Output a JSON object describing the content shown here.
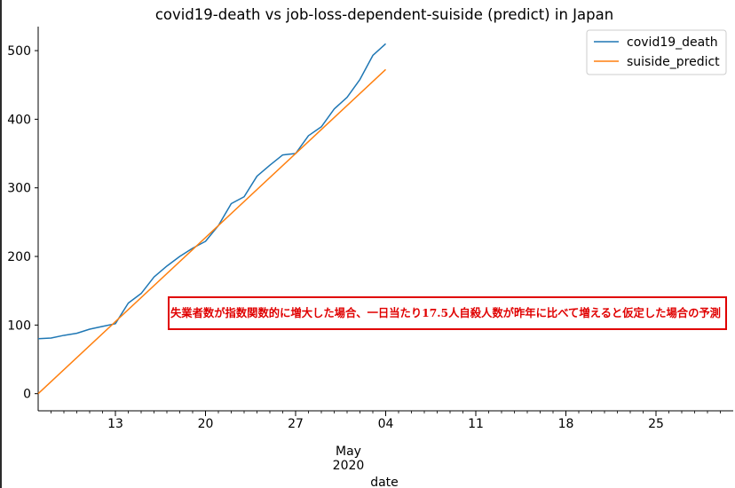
{
  "chart_data": {
    "type": "line",
    "title": "covid19-death vs job-loss-dependent-suiside (predict) in Japan",
    "xlabel": "date",
    "ylabel": "",
    "x_ticks": [
      "13",
      "20",
      "27",
      "04",
      "11",
      "18",
      "25"
    ],
    "x_tick_dates": [
      "2020-04-13",
      "2020-04-20",
      "2020-04-27",
      "2020-05-04",
      "2020-05-11",
      "2020-05-18",
      "2020-05-25"
    ],
    "x_secondary_label": [
      "May",
      "2020"
    ],
    "x_secondary_at": "2020-05-04",
    "xlim": [
      "2020-04-07",
      "2020-05-31"
    ],
    "y_ticks": [
      0,
      100,
      200,
      300,
      400,
      500
    ],
    "ylim": [
      -25,
      535
    ],
    "grid": false,
    "legend_position": "upper right",
    "series": [
      {
        "name": "covid19_death",
        "color": "#1f77b4",
        "x": [
          "2020-04-07",
          "2020-04-08",
          "2020-04-09",
          "2020-04-10",
          "2020-04-11",
          "2020-04-12",
          "2020-04-13",
          "2020-04-14",
          "2020-04-15",
          "2020-04-16",
          "2020-04-17",
          "2020-04-18",
          "2020-04-19",
          "2020-04-20",
          "2020-04-21",
          "2020-04-22",
          "2020-04-23",
          "2020-04-24",
          "2020-04-25",
          "2020-04-26",
          "2020-04-27",
          "2020-04-28",
          "2020-04-29",
          "2020-04-30",
          "2020-05-01",
          "2020-05-02",
          "2020-05-03",
          "2020-05-04"
        ],
        "values": [
          80,
          81,
          85,
          88,
          94,
          98,
          102,
          132,
          146,
          170,
          186,
          200,
          212,
          222,
          245,
          277,
          287,
          317,
          333,
          348,
          350,
          376,
          389,
          415,
          432,
          458,
          493,
          510
        ]
      },
      {
        "name": "suiside_predict",
        "color": "#ff7f0e",
        "x": [
          "2020-04-07",
          "2020-05-04"
        ],
        "values": [
          0,
          472.5
        ]
      }
    ],
    "annotation": {
      "text": "失業者数が指数関数的に増大した場合、一日当たり17.5人自殺人数が昨年に比べて増えると仮定した場合の予測",
      "color": "#e00000"
    }
  }
}
